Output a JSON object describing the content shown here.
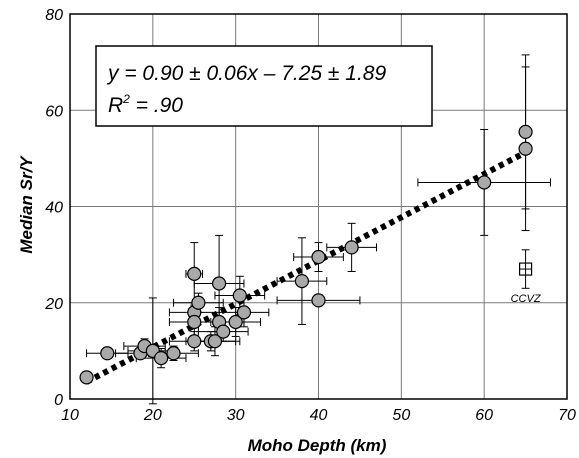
{
  "chart_data": {
    "type": "scatter",
    "xlabel": "Moho Depth (km)",
    "ylabel": "Median Sr/Y",
    "xlim": [
      10,
      70
    ],
    "ylim": [
      0,
      80
    ],
    "xticks": [
      "10",
      "20",
      "30",
      "40",
      "50",
      "60",
      "70"
    ],
    "yticks": [
      "0",
      "20",
      "40",
      "60",
      "80"
    ],
    "grid": true,
    "equation": "y = 0.90 ± 0.06x – 7.25 ± 1.89",
    "r2_prefix": "R",
    "r2_sup": "2",
    "r2_value": " = .90",
    "fit": {
      "slope": 0.9,
      "intercept": -7.25,
      "x_range": [
        12,
        65
      ]
    },
    "points": [
      {
        "x": 12,
        "y": 4.5
      },
      {
        "x": 14.5,
        "y": 9.5,
        "xerr": 2.5
      },
      {
        "x": 18.5,
        "y": 9.5,
        "xerr": 3
      },
      {
        "x": 19,
        "y": 11,
        "xerr": 2.5,
        "yerr": 1.5
      },
      {
        "x": 20,
        "y": 10,
        "xerr": 3,
        "yerr": 11
      },
      {
        "x": 21,
        "y": 8.5,
        "xerr": 3,
        "yerr": 2
      },
      {
        "x": 22.5,
        "y": 9.5,
        "xerr": 3,
        "yerr": 1.5
      },
      {
        "x": 25,
        "y": 12,
        "xerr": 3,
        "yerr": 2
      },
      {
        "x": 25,
        "y": 26,
        "xerr": 1,
        "yerr": 6.5
      },
      {
        "x": 25,
        "y": 18,
        "xerr": 3,
        "yerr": 2
      },
      {
        "x": 25,
        "y": 16,
        "xerr": 3,
        "yerr": 3
      },
      {
        "x": 25.5,
        "y": 20,
        "xerr": 3,
        "yerr": 2
      },
      {
        "x": 27,
        "y": 12,
        "xerr": 3,
        "yerr": 2
      },
      {
        "x": 27.5,
        "y": 12,
        "xerr": 3,
        "yerr": 3
      },
      {
        "x": 28,
        "y": 24,
        "xerr": 3,
        "yerr": 10
      },
      {
        "x": 28,
        "y": 16,
        "xerr": 3,
        "yerr": 3
      },
      {
        "x": 28.5,
        "y": 14,
        "xerr": 3,
        "yerr": 2
      },
      {
        "x": 30,
        "y": 16,
        "xerr": 3,
        "yerr": 3
      },
      {
        "x": 30.5,
        "y": 21.5,
        "xerr": 3,
        "yerr": 4
      },
      {
        "x": 31,
        "y": 18,
        "xerr": 3,
        "yerr": 3
      },
      {
        "x": 38,
        "y": 24.5,
        "xerr": 3,
        "yerr": 9
      },
      {
        "x": 40,
        "y": 29.5,
        "xerr": 3,
        "yerr": 3
      },
      {
        "x": 40,
        "y": 20.5,
        "xerr": 5
      },
      {
        "x": 44,
        "y": 31.5,
        "xerr": 3,
        "yerr": 5
      },
      {
        "x": 60,
        "y": 45,
        "xerr": 8,
        "yerr": 11
      },
      {
        "x": 65,
        "y": 55.5,
        "yerr": 16
      },
      {
        "x": 65,
        "y": 52,
        "yerr": 17
      }
    ],
    "special_point": {
      "x": 65,
      "y": 27,
      "yerr": 4,
      "label": "CCVZ"
    }
  }
}
